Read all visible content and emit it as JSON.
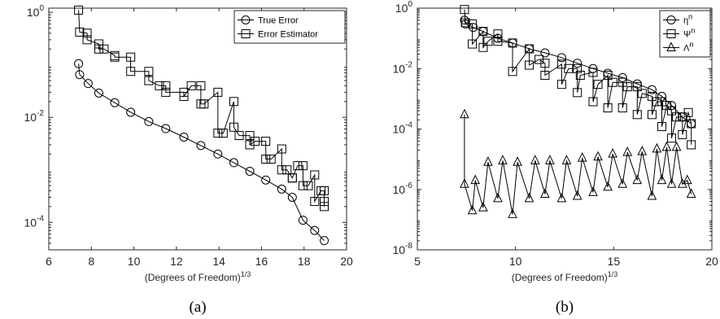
{
  "chart_data": [
    {
      "type": "line",
      "caption": "(a)",
      "xlabel": "(Degrees of Freedom)",
      "xlabel_sup": "1/3",
      "ylabel": "",
      "xlim": [
        6,
        20
      ],
      "ylim": [
        3e-05,
        1.2
      ],
      "yscale": "log",
      "xticks": [
        6,
        8,
        10,
        12,
        14,
        16,
        18,
        20
      ],
      "yticks": [
        1,
        0.01,
        0.0001
      ],
      "ytick_bases": [
        "10",
        "10",
        "10"
      ],
      "ytick_exps": [
        "0",
        "-2",
        "-4"
      ],
      "legend_position": "top-right",
      "series": [
        {
          "name": "True Error",
          "marker": "circle",
          "x": [
            7.4,
            7.45,
            7.85,
            8.35,
            9.1,
            9.85,
            10.7,
            11.5,
            12.35,
            13.15,
            13.95,
            14.7,
            15.45,
            16.2,
            16.95,
            17.45,
            17.95,
            18.5,
            18.95
          ],
          "y": [
            0.105,
            0.065,
            0.044,
            0.029,
            0.019,
            0.0125,
            0.0083,
            0.0061,
            0.0042,
            0.0029,
            0.002,
            0.00137,
            0.00094,
            0.00064,
            0.00043,
            0.0003,
            0.00011,
            7e-05,
            4.5e-05
          ]
        },
        {
          "name": "Error Estimator",
          "marker": "square",
          "x": [
            7.4,
            7.45,
            7.8,
            7.8,
            8.35,
            8.35,
            8.6,
            9.1,
            9.1,
            9.85,
            9.85,
            10.7,
            10.7,
            11.2,
            11.5,
            11.5,
            12.35,
            12.35,
            12.7,
            13.15,
            13.15,
            13.3,
            13.95,
            13.95,
            14.2,
            14.7,
            14.7,
            14.95,
            15.45,
            15.45,
            15.7,
            16.2,
            16.2,
            16.45,
            16.95,
            16.95,
            17.2,
            17.45,
            17.45,
            17.7,
            17.95,
            17.95,
            18.2,
            18.5,
            18.5,
            18.8,
            18.95,
            18.95,
            18.95
          ],
          "y": [
            1.1,
            0.42,
            0.4,
            0.3,
            0.25,
            0.2,
            0.2,
            0.15,
            0.14,
            0.14,
            0.075,
            0.075,
            0.05,
            0.04,
            0.04,
            0.03,
            0.03,
            0.025,
            0.04,
            0.04,
            0.018,
            0.018,
            0.03,
            0.005,
            0.005,
            0.02,
            0.0065,
            0.0045,
            0.0045,
            0.003,
            0.0035,
            0.0035,
            0.0016,
            0.0016,
            0.0025,
            0.001,
            0.001,
            0.0007,
            0.0007,
            0.0012,
            0.0012,
            0.0005,
            0.0005,
            0.0008,
            0.00025,
            0.0004,
            0.0004,
            0.00025,
            0.0002
          ]
        }
      ]
    },
    {
      "type": "line",
      "caption": "(b)",
      "xlabel": "(Degrees of Freedom)",
      "xlabel_sup": "1/3",
      "ylabel": "",
      "xlim": [
        5,
        20
      ],
      "ylim": [
        1e-08,
        1
      ],
      "yscale": "log",
      "xticks": [
        5,
        10,
        15,
        20
      ],
      "yticks": [
        1,
        0.01,
        0.0001,
        1e-06,
        1e-08
      ],
      "ytick_bases": [
        "10",
        "10",
        "10",
        "10",
        "10"
      ],
      "ytick_exps": [
        "0",
        "-2",
        "-4",
        "-6",
        "-8"
      ],
      "legend_position": "top-right",
      "series": [
        {
          "name": "η",
          "name_sup": "n",
          "marker": "circle",
          "x": [
            7.4,
            7.45,
            7.85,
            8.35,
            9.1,
            9.85,
            10.7,
            11.5,
            12.35,
            13.15,
            13.95,
            14.7,
            15.45,
            16.2,
            16.95,
            17.45,
            17.95,
            18.5,
            18.95
          ],
          "y": [
            0.4,
            0.3,
            0.23,
            0.17,
            0.1,
            0.07,
            0.045,
            0.033,
            0.023,
            0.015,
            0.01,
            0.007,
            0.005,
            0.0031,
            0.002,
            0.0012,
            0.0006,
            0.00025,
            0.00015
          ]
        },
        {
          "name": "Ψ",
          "name_sup": "n",
          "marker": "square",
          "x": [
            7.4,
            7.45,
            7.8,
            7.8,
            8.35,
            8.35,
            8.6,
            9.1,
            9.1,
            9.85,
            9.85,
            10.7,
            10.7,
            11.2,
            11.5,
            11.5,
            12.35,
            12.35,
            12.7,
            13.15,
            13.15,
            13.3,
            13.95,
            13.95,
            14.2,
            14.7,
            14.7,
            14.95,
            15.45,
            15.45,
            15.7,
            16.2,
            16.2,
            16.45,
            16.95,
            16.95,
            17.2,
            17.45,
            17.45,
            17.7,
            17.95,
            17.95,
            18.2,
            18.5,
            18.5,
            18.8,
            18.95,
            18.95
          ],
          "y": [
            0.9,
            0.33,
            0.3,
            0.065,
            0.17,
            0.05,
            0.08,
            0.14,
            0.08,
            0.07,
            0.008,
            0.045,
            0.013,
            0.02,
            0.015,
            0.006,
            0.014,
            0.003,
            0.01,
            0.01,
            0.0016,
            0.006,
            0.0075,
            0.0008,
            0.003,
            0.006,
            0.0005,
            0.0035,
            0.0035,
            0.0005,
            0.0025,
            0.0025,
            0.0003,
            0.0015,
            0.0012,
            0.0003,
            0.0008,
            0.0008,
            0.00012,
            0.0006,
            0.0004,
            5e-05,
            0.00025,
            0.00025,
            6.5e-05,
            0.00035,
            0.00015,
            3e-05
          ]
        },
        {
          "name": "Λ",
          "name_sup": "n",
          "marker": "triangle",
          "x": [
            7.4,
            7.4,
            7.8,
            7.95,
            8.35,
            8.6,
            9.1,
            9.35,
            9.85,
            10.1,
            10.7,
            11.0,
            11.5,
            11.75,
            12.35,
            12.6,
            13.15,
            13.4,
            13.95,
            14.2,
            14.7,
            14.95,
            15.45,
            15.7,
            16.2,
            16.45,
            16.95,
            17.2,
            17.45,
            17.7,
            17.95,
            18.2,
            18.5,
            18.75,
            18.95
          ],
          "y": [
            0.0003,
            1.5e-06,
            2e-07,
            2e-06,
            2.5e-07,
            8e-06,
            5e-07,
            9e-06,
            1.5e-07,
            8e-06,
            5e-07,
            9e-06,
            7e-07,
            9e-06,
            5e-07,
            9e-06,
            6e-07,
            1.1e-05,
            8e-07,
            1.2e-05,
            1.2e-06,
            1.5e-05,
            1.5e-06,
            1.7e-05,
            2e-06,
            1.8e-05,
            6e-07,
            2.2e-05,
            2e-06,
            2.5e-05,
            1.5e-06,
            2.5e-05,
            1.5e-06,
            2e-06,
            7e-07
          ]
        }
      ]
    }
  ]
}
